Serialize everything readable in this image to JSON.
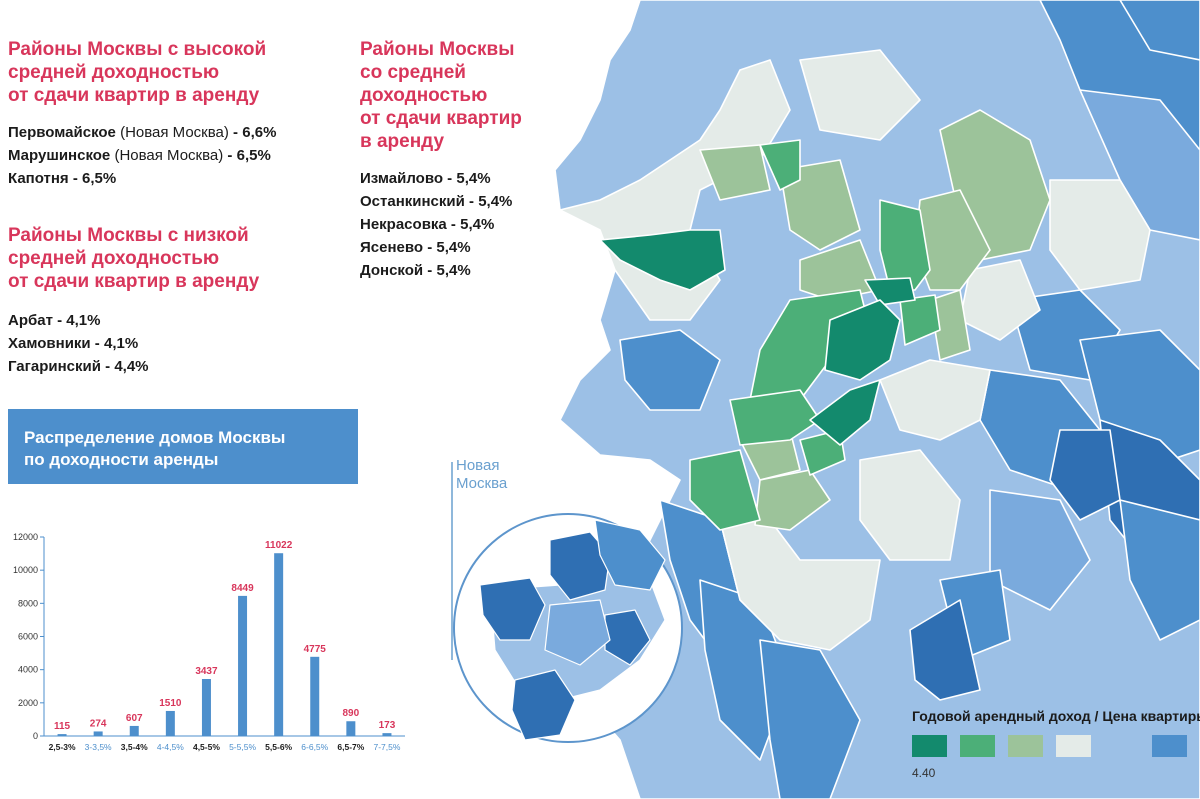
{
  "high": {
    "title": [
      "Районы Москвы с высокой",
      "средней доходностью",
      "от сдачи квартир в аренду"
    ],
    "items": [
      {
        "name": "Первомайское",
        "note": "(Новая Москва)",
        "value": "6,6%"
      },
      {
        "name": "Марушинское",
        "note": "(Новая Москва)",
        "value": "6,5%"
      },
      {
        "name": "Капотня",
        "note": "",
        "value": "6,5%"
      }
    ]
  },
  "low": {
    "title": [
      "Районы Москвы с низкой",
      "средней доходностью",
      "от сдачи квартир в аренду"
    ],
    "items": [
      {
        "name": "Арбат",
        "value": "4,1%"
      },
      {
        "name": "Хамовники",
        "value": "4,1%"
      },
      {
        "name": "Гагаринский",
        "value": "4,4%"
      }
    ]
  },
  "medium": {
    "title": [
      "Районы Москвы",
      "со средней",
      "доходностью",
      "от сдачи квартир",
      "в аренду"
    ],
    "items": [
      {
        "name": "Измайлово",
        "value": "5,4%"
      },
      {
        "name": "Останкинский",
        "value": "5,4%"
      },
      {
        "name": "Некрасовка",
        "value": "5,4%"
      },
      {
        "name": "Ясенево",
        "value": "5,4%"
      },
      {
        "name": "Донской",
        "value": "5,4%"
      }
    ]
  },
  "chart_banner": [
    "Распределение домов Москвы",
    "по доходности аренды"
  ],
  "chart_data": {
    "type": "bar",
    "categories": [
      "2,5-3%",
      "3-3,5%",
      "3,5-4%",
      "4-4,5%",
      "4,5-5%",
      "5-5,5%",
      "5,5-6%",
      "6-6,5%",
      "6,5-7%",
      "7-7,5%"
    ],
    "values": [
      115,
      274,
      607,
      1510,
      3437,
      8449,
      11022,
      4775,
      890,
      173
    ],
    "yticks": [
      0,
      2000,
      4000,
      6000,
      8000,
      10000,
      12000
    ],
    "ylim": [
      0,
      12000
    ],
    "bar_color": "#4d8fcc",
    "value_label_color": "#d8365b"
  },
  "map": {
    "inset_label": [
      "Новая",
      "Москва"
    ],
    "legend_title": "Годовой арендный доход / Цена квартиры",
    "legend_colors": [
      "#138a6d",
      "#4caf78",
      "#9cc39a",
      "#e4ebe8",
      "#9cc0e6",
      "#4d8fcc"
    ],
    "legend_tick": "4.40",
    "palette": {
      "dark_green": "#138a6d",
      "green": "#4caf78",
      "light_green": "#9cc39a",
      "grey": "#e4ebe8",
      "light_blue": "#9cc0e6",
      "mid_blue": "#7aaadd",
      "blue": "#4d8fcc",
      "dark_blue": "#2f6fb3"
    }
  }
}
